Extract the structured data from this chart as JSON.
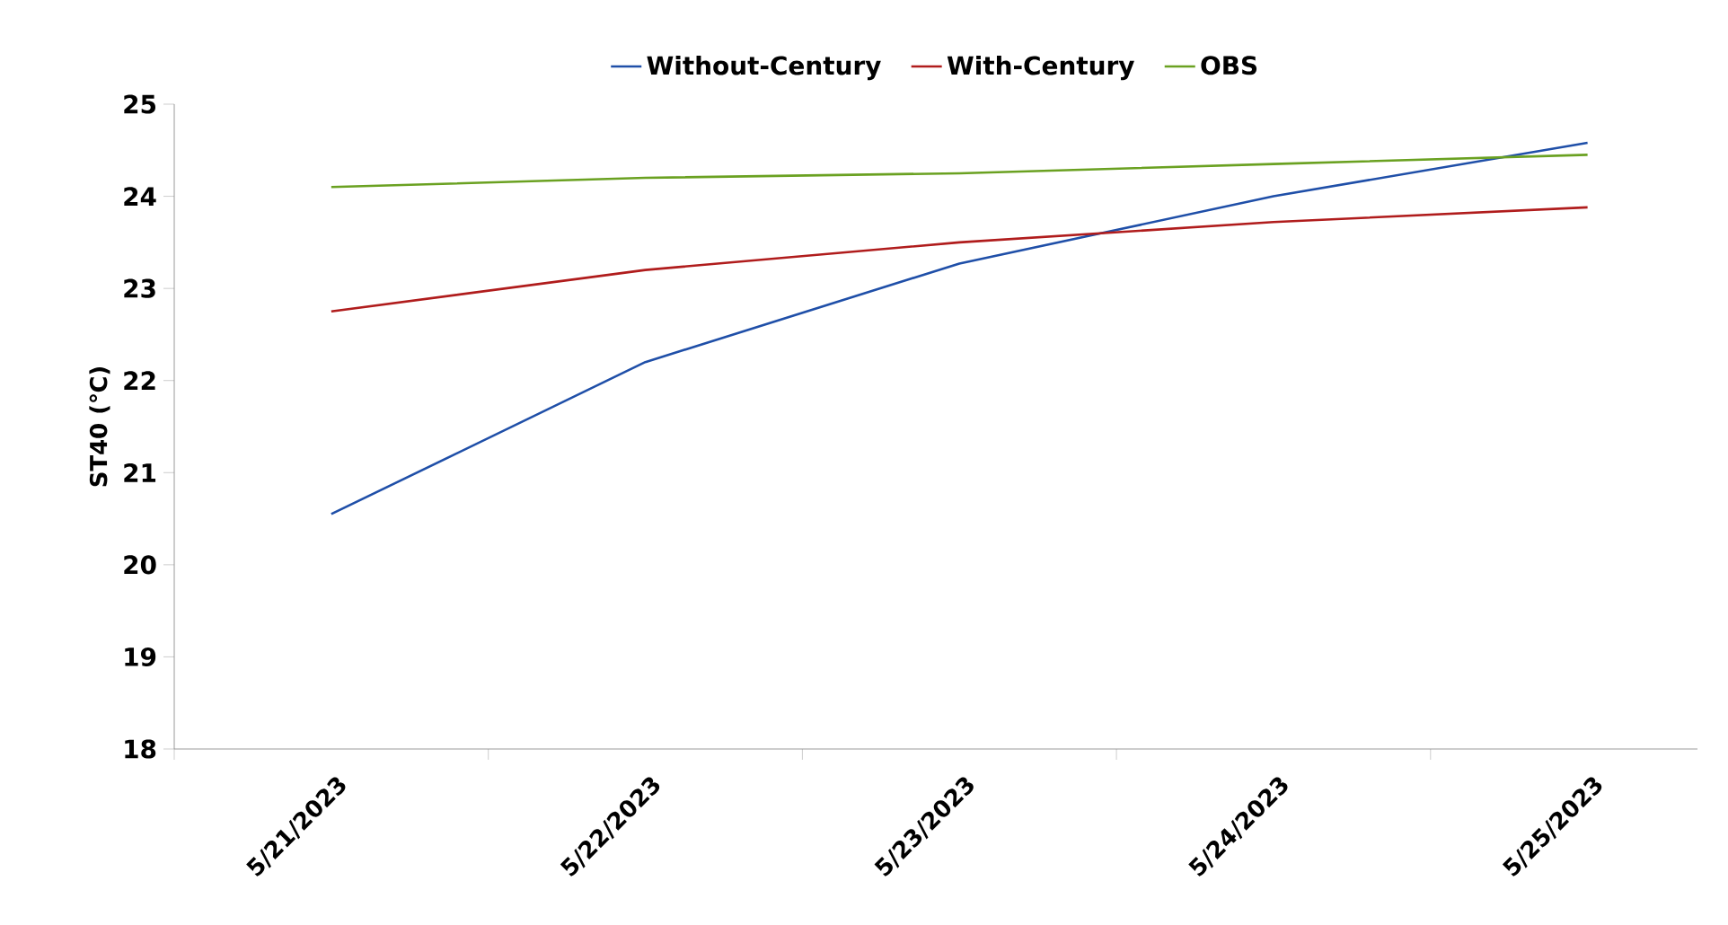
{
  "chart_data": {
    "type": "line",
    "ylabel": "ST40 (℃)",
    "categories": [
      "5/21/2023",
      "5/22/2023",
      "5/23/2023",
      "5/24/2023",
      "5/25/2023"
    ],
    "series": [
      {
        "name": "Without-Century",
        "color": "#1f4fa8",
        "values": [
          20.55,
          22.2,
          23.27,
          24.0,
          24.58
        ]
      },
      {
        "name": "With-Century",
        "color": "#b01c1c",
        "values": [
          22.75,
          23.2,
          23.5,
          23.72,
          23.88
        ]
      },
      {
        "name": "OBS",
        "color": "#6aa121",
        "values": [
          24.1,
          24.2,
          24.25,
          24.35,
          24.45
        ]
      }
    ],
    "ylim": [
      18,
      25
    ],
    "yticks": [
      18,
      19,
      20,
      21,
      22,
      23,
      24,
      25
    ],
    "legend": "top"
  }
}
